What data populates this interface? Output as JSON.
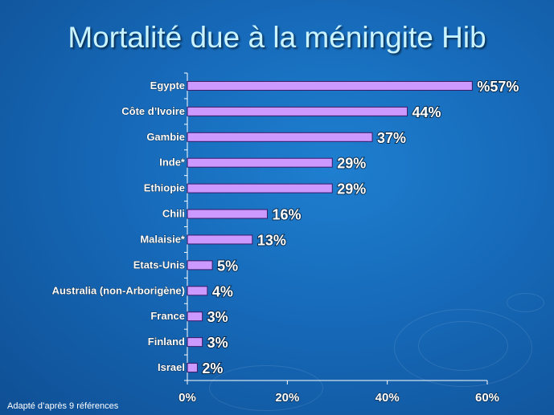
{
  "slide": {
    "title": "Mortalité due à la méningite Hib",
    "source_note": "Adapté  d’après  9 références"
  },
  "colors": {
    "bar": "#cc99ff",
    "bar_border": "#3a1a66",
    "text": "#ffffff",
    "title": "#c9f4ff"
  },
  "chart_data": {
    "type": "bar",
    "orientation": "horizontal",
    "title": "Mortalité due à la méningite Hib",
    "categories": [
      "Egypte",
      "Côte d’Ivoire",
      "Gambie",
      "Inde*",
      "Ethiopie",
      "Chili",
      "Malaisie*",
      "Etats-Unis",
      "Australia (non-Arborigène)",
      "France",
      "Finland",
      "Israel"
    ],
    "values": [
      57,
      44,
      37,
      29,
      29,
      16,
      13,
      5,
      4,
      3,
      3,
      2
    ],
    "data_labels": [
      "%57%",
      "44%",
      "37%",
      "29%",
      "29%",
      "16%",
      "13%",
      "5%",
      "4%",
      "3%",
      "3%",
      "2%"
    ],
    "xlim": [
      0,
      60
    ],
    "xticks": [
      0,
      20,
      40,
      60
    ],
    "xtick_labels": [
      "0%",
      "20%",
      "40%",
      "60%"
    ],
    "grid": false,
    "legend": "none"
  }
}
